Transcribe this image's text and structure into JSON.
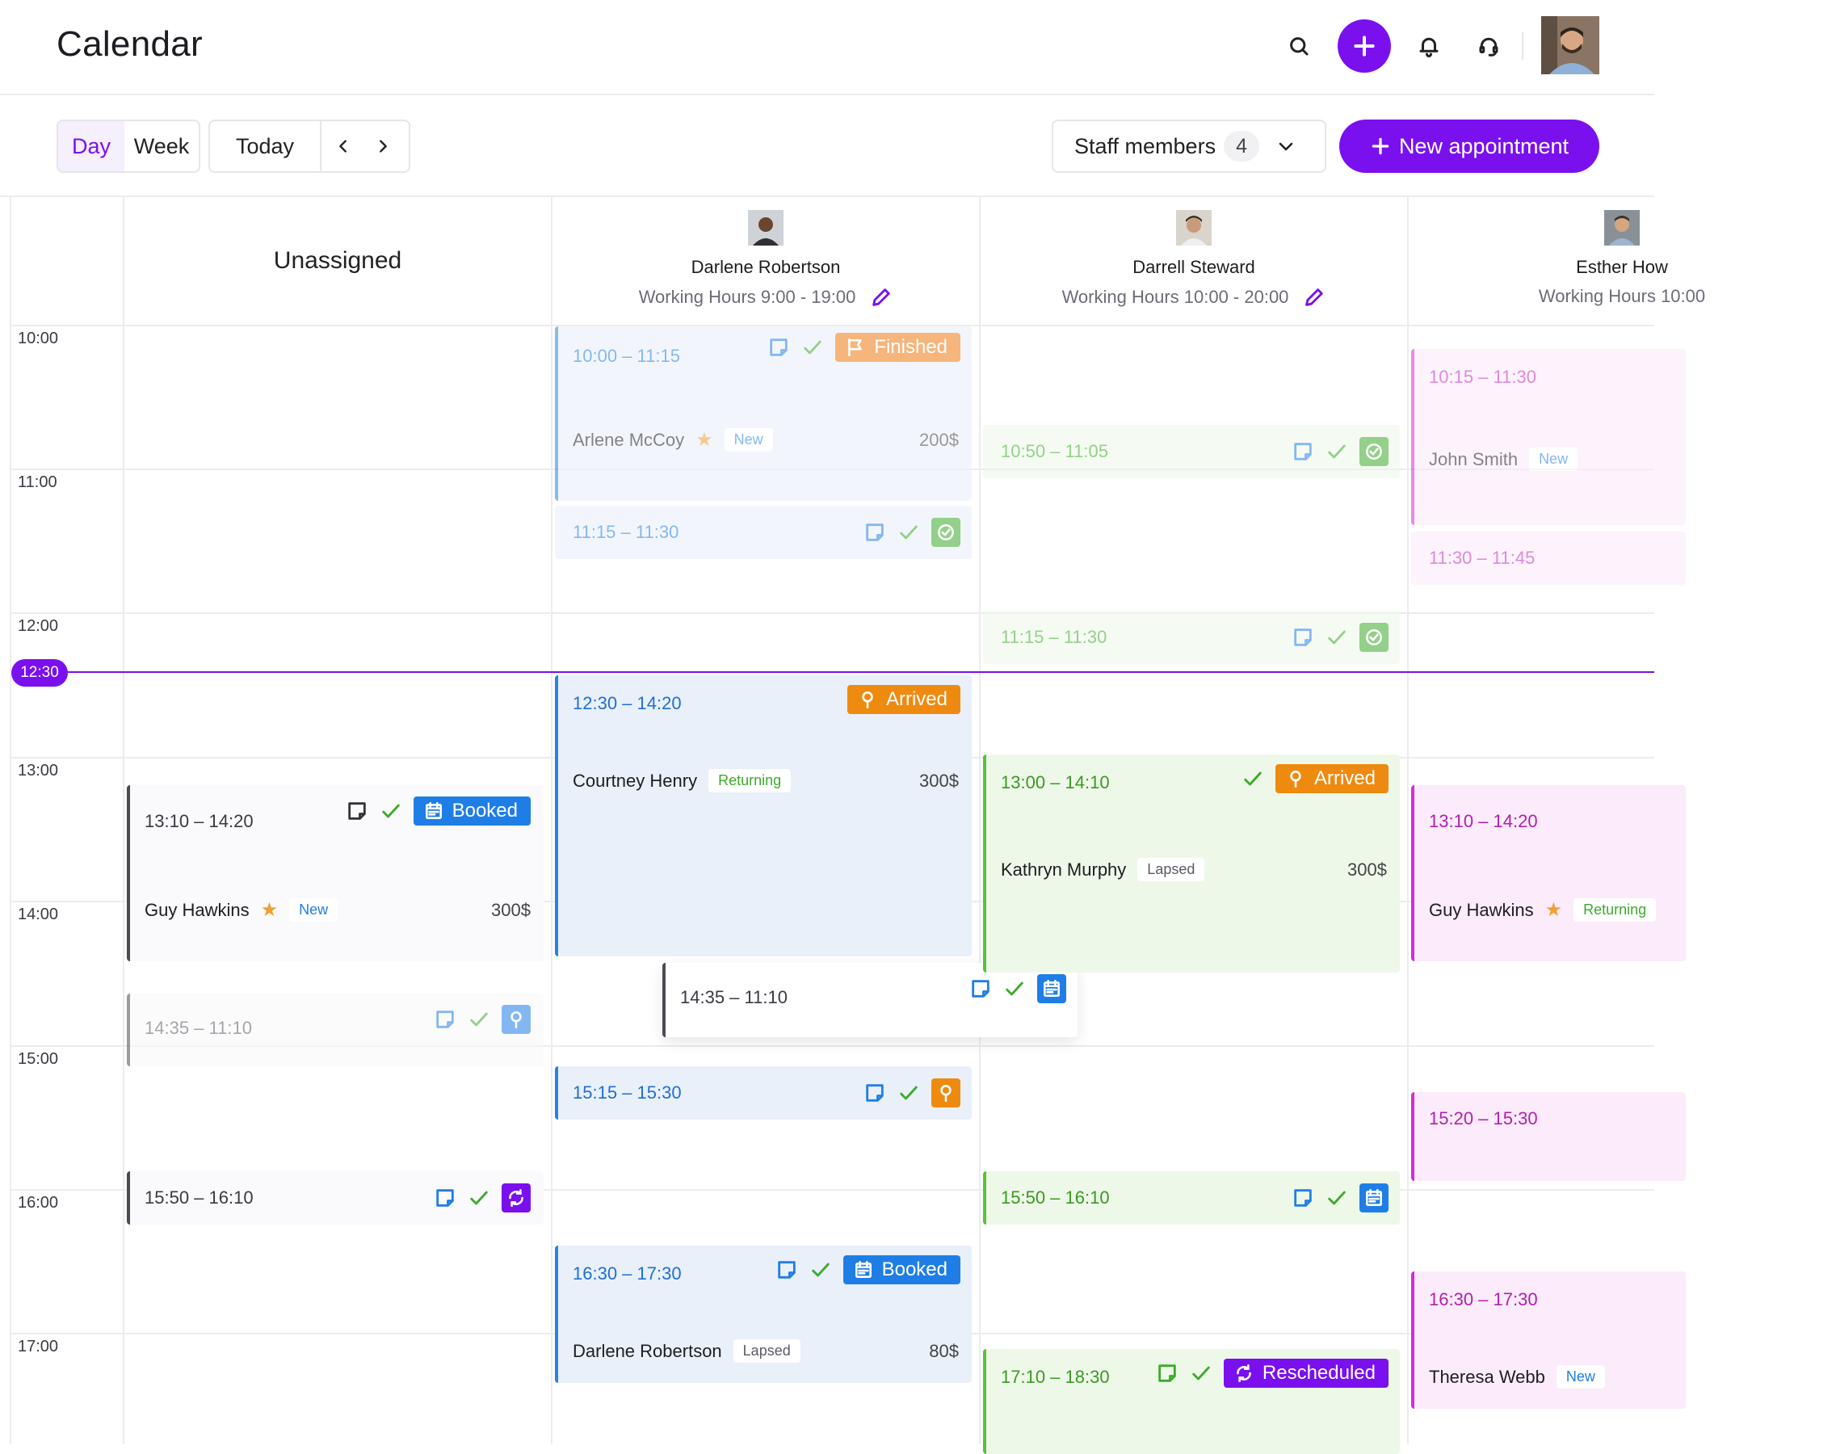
{
  "app": {
    "title": "Calendar"
  },
  "toolbar": {
    "view_day": "Day",
    "view_week": "Week",
    "today": "Today",
    "staff_label": "Staff members",
    "staff_count": "4",
    "new_appointment": "New appointment"
  },
  "time_slots": [
    "10:00",
    "11:00",
    "12:00",
    "13:00",
    "14:00",
    "15:00",
    "16:00",
    "17:00"
  ],
  "current_time": "12:30",
  "columns": {
    "unassigned": {
      "title": "Unassigned"
    },
    "darlene": {
      "name": "Darlene Robertson",
      "hours": "Working Hours 9:00 - 19:00"
    },
    "darrell": {
      "name": "Darrell Steward",
      "hours": "Working Hours 10:00 - 20:00"
    },
    "esther": {
      "name": "Esther How",
      "hours": "Working Hours 10:00"
    }
  },
  "appointments": {
    "a1": {
      "time": "10:00 – 11:15",
      "badge": "Finished",
      "client": "Arlene McCoy",
      "tag": "New",
      "price": "200$"
    },
    "a2": {
      "time": "11:15 – 11:30"
    },
    "a3": {
      "time": "12:30 – 14:20",
      "badge": "Arrived",
      "client": "Courtney Henry",
      "tag": "Returning",
      "price": "300$"
    },
    "a4": {
      "time": "14:35 – 11:10"
    },
    "a5": {
      "time": "15:15 – 15:30"
    },
    "a6": {
      "time": "16:30 – 17:30",
      "badge": "Booked",
      "client": "Darlene Robertson",
      "tag": "Lapsed",
      "price": "80$"
    },
    "b1": {
      "time": "13:10 – 14:20",
      "badge": "Booked",
      "client": "Guy Hawkins",
      "tag": "New",
      "price": "300$"
    },
    "b2": {
      "time": "14:35 – 11:10"
    },
    "b3": {
      "time": "15:50 – 16:10"
    },
    "d1": {
      "time": "10:50 – 11:05"
    },
    "d2": {
      "time": "11:15 – 11:30"
    },
    "d3": {
      "time": "13:00 – 14:10",
      "badge": "Arrived",
      "client": "Kathryn Murphy",
      "tag": "Lapsed",
      "price": "300$"
    },
    "d4": {
      "time": "15:50 – 16:10"
    },
    "d5": {
      "time": "17:10 – 18:30",
      "badge": "Rescheduled"
    },
    "e1": {
      "time": "10:15 – 11:30",
      "client": "John Smith",
      "tag": "New"
    },
    "e2": {
      "time": "11:30 – 11:45"
    },
    "e3": {
      "time": "13:10 – 14:20",
      "client": "Guy Hawkins",
      "tag": "Returning"
    },
    "e4": {
      "time": "15:20 – 15:30"
    },
    "e5": {
      "time": "16:30 – 17:30",
      "client": "Theresa Webb",
      "tag": "New"
    }
  },
  "colors": {
    "accent": "#7a10ee",
    "finished": "#f0a060",
    "arrived": "#ee8a10",
    "booked": "#1f7ee6",
    "rescheduled": "#7a10ee",
    "confirmed": "#6cc04a"
  }
}
